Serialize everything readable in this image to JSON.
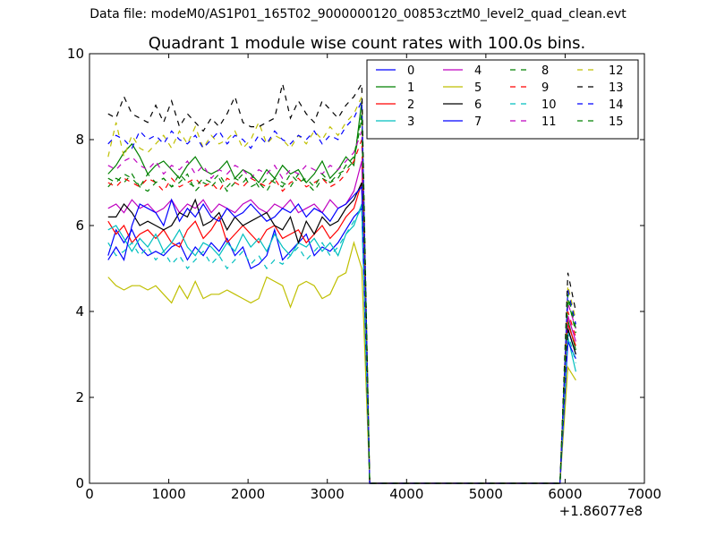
{
  "suptitle": "Data file: modeM0/AS1P01_165T02_9000000120_00853cztM0_level2_quad_clean.evt",
  "chart_data": {
    "type": "line",
    "title": "Quadrant 1 module wise count rates with 100.0s bins.",
    "xlabel": "",
    "ylabel": "",
    "x_offset_label": "+1.86077e8",
    "xlim": [
      0,
      7000
    ],
    "ylim": [
      0,
      10
    ],
    "xticks": [
      0,
      1000,
      2000,
      3000,
      4000,
      5000,
      6000,
      7000
    ],
    "yticks": [
      0,
      2,
      4,
      6,
      8,
      10
    ],
    "grid": false,
    "legend_position": "top-right",
    "x": [
      235,
      335,
      435,
      535,
      635,
      735,
      835,
      935,
      1035,
      1135,
      1235,
      1335,
      1435,
      1535,
      1635,
      1735,
      1835,
      1935,
      2035,
      2135,
      2235,
      2335,
      2435,
      2535,
      2635,
      2735,
      2835,
      2935,
      3035,
      3135,
      3235,
      3335,
      3435,
      3535,
      3635,
      5935,
      6035,
      6135
    ],
    "series": [
      {
        "name": "0",
        "color": "#0000ff",
        "dash": "solid",
        "values": [
          5.3,
          5.9,
          5.6,
          5.9,
          5.5,
          5.3,
          5.4,
          5.3,
          5.5,
          5.6,
          5.2,
          5.5,
          5.3,
          5.6,
          5.4,
          5.7,
          5.3,
          5.5,
          5.0,
          5.1,
          5.3,
          5.9,
          5.2,
          5.4,
          5.6,
          5.8,
          5.3,
          5.5,
          5.4,
          5.6,
          5.9,
          6.2,
          6.4,
          0,
          0,
          0,
          3.6,
          3.0
        ]
      },
      {
        "name": "1",
        "color": "#008000",
        "dash": "solid",
        "values": [
          7.2,
          7.4,
          7.7,
          7.9,
          7.6,
          7.2,
          7.4,
          7.5,
          7.3,
          7.1,
          7.4,
          7.6,
          7.3,
          7.2,
          7.3,
          7.5,
          7.1,
          7.3,
          7.2,
          7.0,
          7.3,
          7.1,
          7.4,
          7.2,
          7.3,
          7.0,
          7.2,
          7.5,
          7.1,
          7.3,
          7.6,
          7.4,
          8.9,
          0,
          0,
          0,
          3.8,
          3.1
        ]
      },
      {
        "name": "2",
        "color": "#ff0000",
        "dash": "solid",
        "values": [
          6.1,
          5.8,
          6.0,
          5.6,
          5.8,
          5.9,
          5.7,
          5.9,
          5.6,
          5.5,
          5.9,
          6.1,
          5.7,
          5.9,
          6.2,
          5.6,
          5.8,
          6.0,
          5.8,
          5.6,
          5.9,
          6.0,
          5.7,
          5.8,
          5.9,
          5.6,
          5.8,
          6.0,
          5.7,
          5.9,
          6.2,
          6.4,
          7.0,
          0,
          0,
          0,
          3.7,
          3.2
        ]
      },
      {
        "name": "3",
        "color": "#00bfbf",
        "dash": "solid",
        "values": [
          5.9,
          6.0,
          5.7,
          5.4,
          5.7,
          5.5,
          5.8,
          5.4,
          5.6,
          5.9,
          5.5,
          5.3,
          5.6,
          5.5,
          5.3,
          5.6,
          5.4,
          5.8,
          5.5,
          5.7,
          5.4,
          5.8,
          5.5,
          5.3,
          5.6,
          5.5,
          5.7,
          5.4,
          5.6,
          5.3,
          5.8,
          6.0,
          6.5,
          0,
          0,
          0,
          3.4,
          2.6
        ]
      },
      {
        "name": "4",
        "color": "#bf00bf",
        "dash": "solid",
        "values": [
          6.4,
          6.5,
          6.3,
          6.6,
          6.4,
          6.5,
          6.3,
          6.4,
          6.6,
          6.3,
          6.5,
          6.4,
          6.6,
          6.3,
          6.5,
          6.4,
          6.3,
          6.5,
          6.6,
          6.4,
          6.3,
          6.5,
          6.4,
          6.6,
          6.3,
          6.4,
          6.5,
          6.3,
          6.6,
          6.4,
          6.5,
          6.8,
          7.5,
          0,
          0,
          0,
          3.9,
          3.3
        ]
      },
      {
        "name": "5",
        "color": "#bfbf00",
        "dash": "solid",
        "values": [
          4.8,
          4.6,
          4.5,
          4.6,
          4.6,
          4.5,
          4.6,
          4.4,
          4.2,
          4.6,
          4.3,
          4.7,
          4.3,
          4.4,
          4.4,
          4.5,
          4.4,
          4.3,
          4.2,
          4.3,
          4.8,
          4.7,
          4.6,
          4.1,
          4.6,
          4.7,
          4.6,
          4.3,
          4.4,
          4.8,
          4.9,
          5.6,
          5.0,
          0,
          0,
          0,
          2.7,
          2.4
        ]
      },
      {
        "name": "6",
        "color": "#000000",
        "dash": "solid",
        "values": [
          6.2,
          6.2,
          6.5,
          6.3,
          6.0,
          6.1,
          6.0,
          5.9,
          6.0,
          6.3,
          6.2,
          6.6,
          6.0,
          6.1,
          6.3,
          5.9,
          6.2,
          6.0,
          6.1,
          6.2,
          6.3,
          6.0,
          5.9,
          6.2,
          5.6,
          6.1,
          5.8,
          6.2,
          6.0,
          6.1,
          6.4,
          6.6,
          7.0,
          0,
          0,
          0,
          3.6,
          3.0
        ]
      },
      {
        "name": "7",
        "color": "#0000ff",
        "dash": "solid",
        "values": [
          5.2,
          5.5,
          5.2,
          6.0,
          6.5,
          6.4,
          6.3,
          6.0,
          6.6,
          6.1,
          6.4,
          6.2,
          6.5,
          6.2,
          6.1,
          6.4,
          6.2,
          6.3,
          6.5,
          6.3,
          6.1,
          6.2,
          6.4,
          6.3,
          6.5,
          6.2,
          6.4,
          6.3,
          6.1,
          6.4,
          6.5,
          6.7,
          6.9,
          0,
          0,
          0,
          3.3,
          2.9
        ]
      },
      {
        "name": "8",
        "color": "#008000",
        "dash": "dash",
        "values": [
          6.9,
          7.1,
          7.0,
          7.2,
          6.9,
          6.8,
          7.0,
          7.1,
          6.9,
          7.0,
          7.2,
          6.8,
          7.0,
          6.9,
          7.1,
          6.8,
          7.0,
          7.2,
          6.9,
          7.0,
          6.8,
          7.1,
          7.0,
          6.9,
          7.2,
          7.0,
          6.8,
          7.1,
          7.0,
          7.2,
          7.3,
          7.5,
          8.5,
          0,
          0,
          0,
          4.3,
          3.5
        ]
      },
      {
        "name": "9",
        "color": "#ff0000",
        "dash": "dash",
        "values": [
          7.0,
          6.9,
          7.1,
          7.0,
          6.9,
          7.1,
          7.0,
          6.8,
          7.1,
          6.9,
          7.0,
          7.1,
          6.9,
          7.0,
          6.8,
          7.1,
          7.0,
          6.9,
          7.1,
          7.0,
          6.9,
          7.1,
          6.8,
          7.0,
          7.1,
          6.9,
          7.0,
          7.1,
          6.9,
          7.0,
          7.2,
          7.5,
          8.0,
          0,
          0,
          0,
          4.0,
          3.4
        ]
      },
      {
        "name": "10",
        "color": "#00bfbf",
        "dash": "dash",
        "values": [
          5.6,
          5.3,
          5.4,
          5.6,
          5.3,
          5.5,
          5.2,
          5.4,
          5.1,
          5.3,
          5.0,
          5.2,
          5.4,
          5.1,
          5.3,
          5.0,
          5.2,
          5.4,
          5.1,
          5.3,
          5.0,
          5.2,
          5.1,
          5.3,
          5.5,
          5.2,
          5.4,
          5.6,
          5.3,
          5.5,
          5.8,
          6.1,
          6.4,
          0,
          0,
          0,
          3.5,
          2.8
        ]
      },
      {
        "name": "11",
        "color": "#bf00bf",
        "dash": "dash",
        "values": [
          7.4,
          7.3,
          7.5,
          7.6,
          7.4,
          7.3,
          7.5,
          7.2,
          7.4,
          7.3,
          7.5,
          7.2,
          7.4,
          7.1,
          7.3,
          7.2,
          7.4,
          7.3,
          7.1,
          7.3,
          7.2,
          7.4,
          7.1,
          7.3,
          7.2,
          7.4,
          7.3,
          7.2,
          7.4,
          7.3,
          7.5,
          7.7,
          8.2,
          0,
          0,
          0,
          4.2,
          3.6
        ]
      },
      {
        "name": "12",
        "color": "#bfbf00",
        "dash": "dash",
        "values": [
          7.6,
          8.4,
          7.6,
          8.1,
          7.8,
          7.7,
          7.9,
          8.1,
          7.8,
          8.2,
          7.9,
          8.3,
          7.8,
          8.1,
          7.9,
          8.0,
          8.2,
          7.8,
          8.0,
          8.4,
          7.9,
          8.1,
          8.0,
          7.8,
          8.1,
          7.9,
          8.2,
          8.0,
          8.3,
          8.1,
          8.4,
          8.6,
          9.0,
          0,
          0,
          0,
          4.6,
          3.8
        ]
      },
      {
        "name": "13",
        "color": "#000000",
        "dash": "dash",
        "values": [
          8.6,
          8.5,
          9.0,
          8.6,
          8.5,
          8.4,
          8.8,
          8.4,
          8.9,
          8.3,
          8.6,
          8.4,
          8.2,
          8.5,
          8.3,
          8.6,
          9.0,
          8.4,
          8.3,
          8.3,
          8.4,
          8.5,
          9.3,
          8.5,
          8.9,
          8.6,
          8.4,
          8.9,
          8.7,
          8.5,
          8.8,
          9.0,
          9.3,
          0,
          0,
          0,
          4.9,
          4.0
        ]
      },
      {
        "name": "14",
        "color": "#0000ff",
        "dash": "dash",
        "values": [
          7.9,
          8.1,
          8.0,
          7.8,
          8.2,
          8.0,
          8.1,
          7.9,
          8.2,
          8.0,
          7.9,
          8.1,
          7.8,
          8.0,
          8.2,
          7.9,
          8.1,
          8.0,
          7.8,
          8.1,
          7.9,
          8.2,
          8.0,
          7.9,
          8.1,
          8.0,
          8.2,
          7.9,
          8.1,
          8.0,
          8.3,
          8.5,
          8.9,
          0,
          0,
          0,
          4.5,
          3.7
        ]
      },
      {
        "name": "15",
        "color": "#008000",
        "dash": "dash",
        "values": [
          7.1,
          7.0,
          7.2,
          7.1,
          6.9,
          7.2,
          7.0,
          7.1,
          6.9,
          7.2,
          7.0,
          6.9,
          7.1,
          7.0,
          7.2,
          6.9,
          7.1,
          7.0,
          7.2,
          6.9,
          7.1,
          7.0,
          6.9,
          7.2,
          7.0,
          7.1,
          6.9,
          7.2,
          7.0,
          7.1,
          7.4,
          7.6,
          8.6,
          0,
          0,
          0,
          4.4,
          3.6
        ]
      }
    ]
  }
}
